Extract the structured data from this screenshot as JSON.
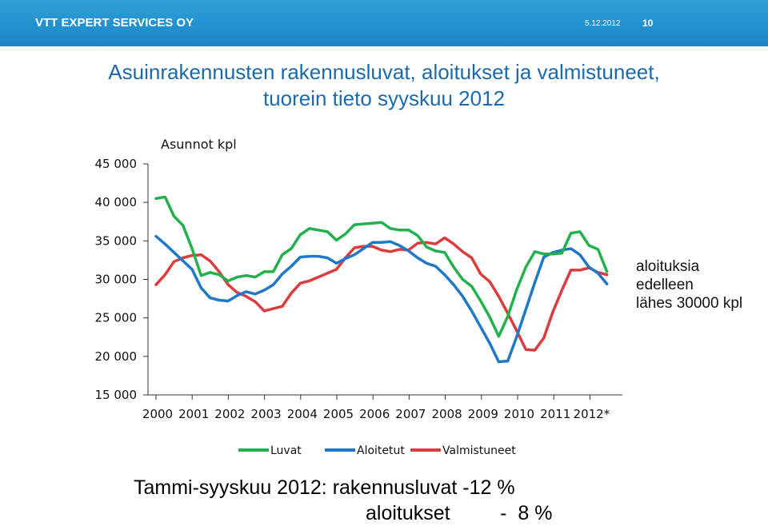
{
  "header": {
    "company": "VTT EXPERT SERVICES OY",
    "date": "5.12.2012",
    "page": "10",
    "bar_color": "#2294d2"
  },
  "title": {
    "line1": "Asuinrakennusten rakennusluvat, aloitukset ja valmistuneet,",
    "line2": "tuorein tieto syyskuu 2012"
  },
  "note": {
    "line1": "aloituksia",
    "line2": "edelleen",
    "line3": "lähes 30000 kpl"
  },
  "summary": {
    "line1": "Tammi-syyskuu 2012: rakennusluvat -12 %",
    "line2": "aloitukset         -  8 %"
  },
  "chart_data": {
    "type": "line",
    "unit_label": "Asunnot kpl",
    "categories": [
      "2000",
      "2001",
      "2002",
      "2003",
      "2004",
      "2005",
      "2006",
      "2007",
      "2008",
      "2009",
      "2010",
      "2011",
      "2012*"
    ],
    "y_tick_labels": [
      "15 000",
      "20 000",
      "25 000",
      "30 000",
      "35 000",
      "40 000",
      "45 000"
    ],
    "ylim": [
      15000,
      45000
    ],
    "xlim": [
      2000,
      2012.75
    ],
    "grid": false,
    "legend_position": "bottom",
    "series": [
      {
        "name": "Luvat",
        "color": "#22b14c",
        "x": [
          2000.0,
          2000.25,
          2000.5,
          2000.75,
          2001.0,
          2001.25,
          2001.5,
          2001.75,
          2002.0,
          2002.25,
          2002.5,
          2002.75,
          2003.0,
          2003.25,
          2003.5,
          2003.75,
          2004.0,
          2004.25,
          2004.5,
          2004.75,
          2005.0,
          2005.25,
          2005.5,
          2005.75,
          2006.0,
          2006.25,
          2006.5,
          2006.75,
          2007.0,
          2007.25,
          2007.5,
          2007.75,
          2008.0,
          2008.25,
          2008.5,
          2008.75,
          2009.0,
          2009.25,
          2009.5,
          2009.75,
          2010.0,
          2010.25,
          2010.5,
          2010.75,
          2011.0,
          2011.25,
          2011.5,
          2011.75,
          2012.0,
          2012.25,
          2012.5
        ],
        "values": [
          40500,
          40700,
          38200,
          37000,
          34000,
          30500,
          30900,
          30600,
          29800,
          30300,
          30500,
          30300,
          31000,
          31000,
          33200,
          34000,
          35800,
          36600,
          36400,
          36200,
          35100,
          35900,
          37100,
          37200,
          37300,
          37400,
          36600,
          36400,
          36400,
          35700,
          34200,
          33700,
          33500,
          31600,
          30000,
          29100,
          27200,
          25100,
          22600,
          25200,
          28700,
          31600,
          33600,
          33300,
          33300,
          33400,
          36000,
          36200,
          34400,
          33900,
          31000
        ]
      },
      {
        "name": "Aloitetut",
        "color": "#1f78c8",
        "x": [
          2000.0,
          2000.25,
          2000.5,
          2000.75,
          2001.0,
          2001.25,
          2001.5,
          2001.75,
          2002.0,
          2002.25,
          2002.5,
          2002.75,
          2003.0,
          2003.25,
          2003.5,
          2003.75,
          2004.0,
          2004.25,
          2004.5,
          2004.75,
          2005.0,
          2005.25,
          2005.5,
          2005.75,
          2006.0,
          2006.25,
          2006.5,
          2006.75,
          2007.0,
          2007.25,
          2007.5,
          2007.75,
          2008.0,
          2008.25,
          2008.5,
          2008.75,
          2009.0,
          2009.25,
          2009.5,
          2009.75,
          2010.0,
          2010.25,
          2010.5,
          2010.75,
          2011.0,
          2011.25,
          2011.5,
          2011.75,
          2012.0,
          2012.25,
          2012.5
        ],
        "values": [
          35600,
          34600,
          33500,
          32400,
          31300,
          28900,
          27600,
          27300,
          27200,
          27900,
          28400,
          28100,
          28600,
          29300,
          30700,
          31700,
          32900,
          33000,
          33000,
          32800,
          32100,
          32700,
          33200,
          34000,
          34800,
          34800,
          34900,
          34400,
          33700,
          32800,
          32100,
          31700,
          30600,
          29300,
          27800,
          25900,
          23800,
          21700,
          19300,
          19400,
          22600,
          26100,
          29600,
          32900,
          33500,
          33800,
          34000,
          33200,
          31600,
          30800,
          29400
        ]
      },
      {
        "name": "Valmistuneet",
        "color": "#dc3c3c",
        "x": [
          2000.0,
          2000.25,
          2000.5,
          2000.75,
          2001.0,
          2001.25,
          2001.5,
          2001.75,
          2002.0,
          2002.25,
          2002.5,
          2002.75,
          2003.0,
          2003.25,
          2003.5,
          2003.75,
          2004.0,
          2004.25,
          2004.5,
          2004.75,
          2005.0,
          2005.25,
          2005.5,
          2005.75,
          2006.0,
          2006.25,
          2006.5,
          2006.75,
          2007.0,
          2007.25,
          2007.5,
          2007.75,
          2008.0,
          2008.25,
          2008.5,
          2008.75,
          2009.0,
          2009.25,
          2009.5,
          2009.75,
          2010.0,
          2010.25,
          2010.5,
          2010.75,
          2011.0,
          2011.25,
          2011.5,
          2011.75,
          2012.0,
          2012.25,
          2012.5
        ],
        "values": [
          29300,
          30600,
          32300,
          32800,
          33100,
          33200,
          32400,
          31000,
          29300,
          28300,
          27800,
          27100,
          25900,
          26200,
          26500,
          28200,
          29500,
          29800,
          30300,
          30800,
          31300,
          32800,
          34100,
          34300,
          34300,
          33800,
          33600,
          33900,
          33800,
          34700,
          34800,
          34600,
          35400,
          34600,
          33600,
          32800,
          30700,
          29700,
          27800,
          25600,
          23300,
          20900,
          20800,
          22400,
          25800,
          28600,
          31200,
          31200,
          31500,
          30900,
          30600
        ]
      }
    ]
  }
}
